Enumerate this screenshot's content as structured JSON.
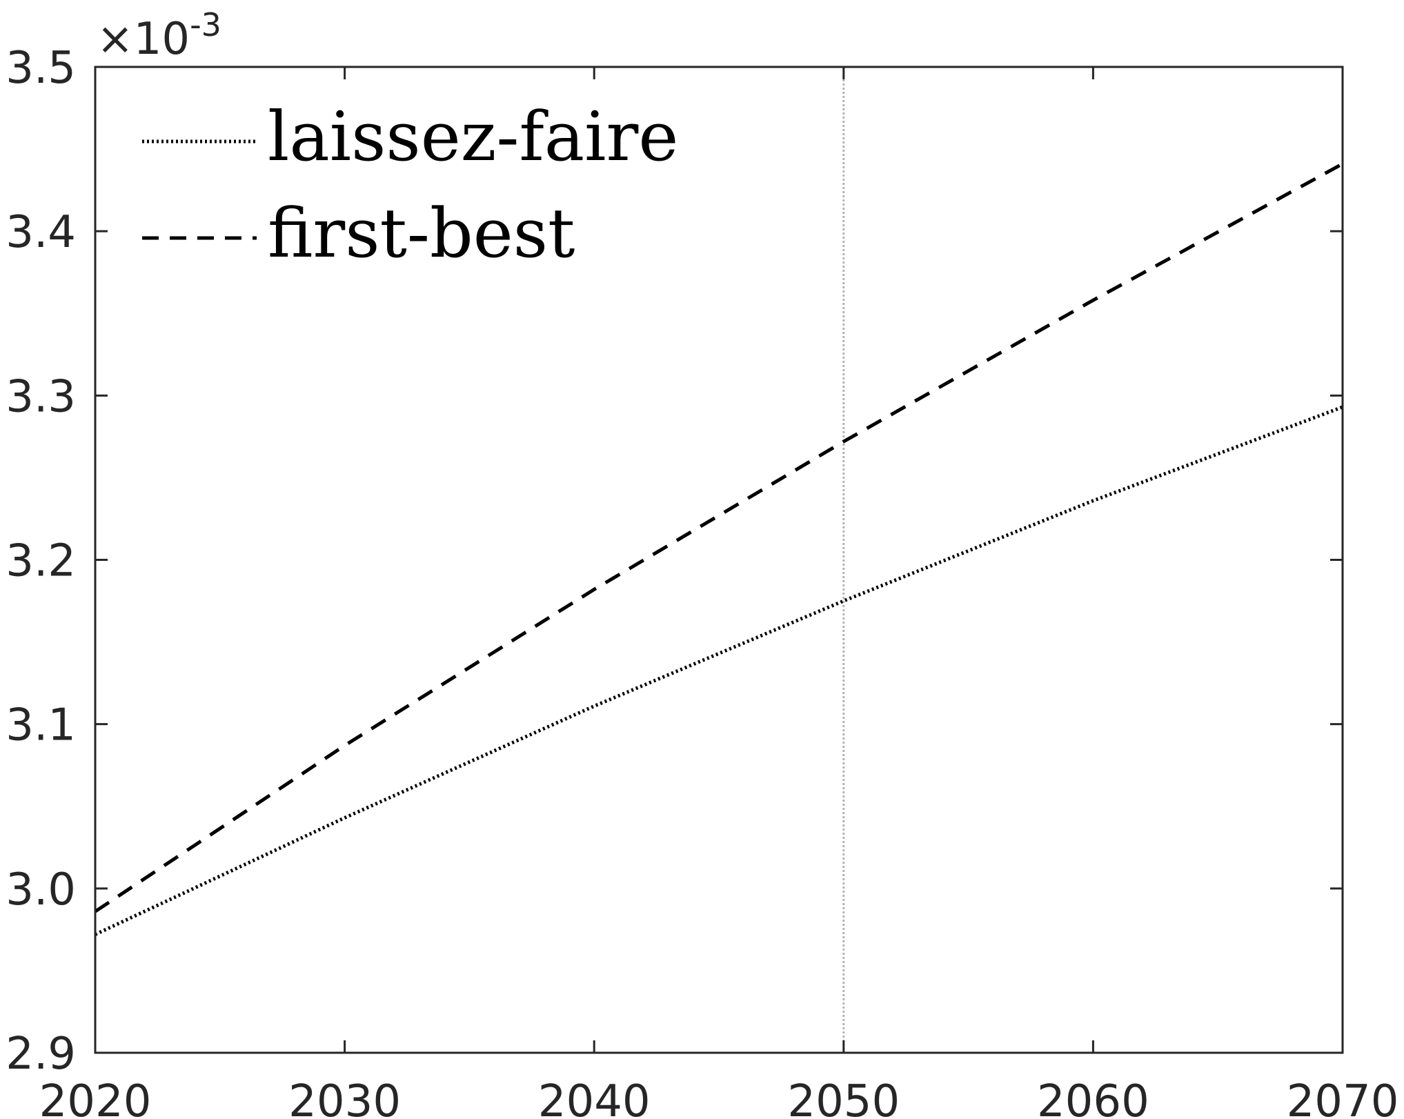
{
  "chart_data": {
    "type": "line",
    "title": "",
    "xlabel": "",
    "ylabel": "",
    "xlim": [
      2020,
      2070
    ],
    "ylim": [
      2.9,
      3.5
    ],
    "x_ticks": [
      2020,
      2030,
      2040,
      2050,
      2060,
      2070
    ],
    "y_ticks": [
      2.9,
      3.0,
      3.1,
      3.2,
      3.3,
      3.4,
      3.5
    ],
    "y_tick_labels": [
      "2.9",
      "3.0",
      "3.1",
      "3.2",
      "3.3",
      "3.4",
      "3.5"
    ],
    "y_exponent_base": "×10",
    "y_exponent_power": "-3",
    "legend_position": "top-left",
    "grid": false,
    "reference_lines": [
      {
        "axis": "x",
        "value": 2050,
        "color": "#b3b3b3",
        "style": "dotted"
      }
    ],
    "series": [
      {
        "name": "laissez-faire",
        "style": "dotted",
        "color": "#000000",
        "x": [
          2020,
          2030,
          2040,
          2050,
          2060,
          2070
        ],
        "y": [
          2.972,
          3.043,
          3.111,
          3.175,
          3.236,
          3.293
        ]
      },
      {
        "name": "first-best",
        "style": "dashed",
        "color": "#000000",
        "x": [
          2020,
          2030,
          2040,
          2050,
          2060,
          2070
        ],
        "y": [
          2.986,
          3.087,
          3.182,
          3.272,
          3.358,
          3.441
        ]
      }
    ]
  }
}
